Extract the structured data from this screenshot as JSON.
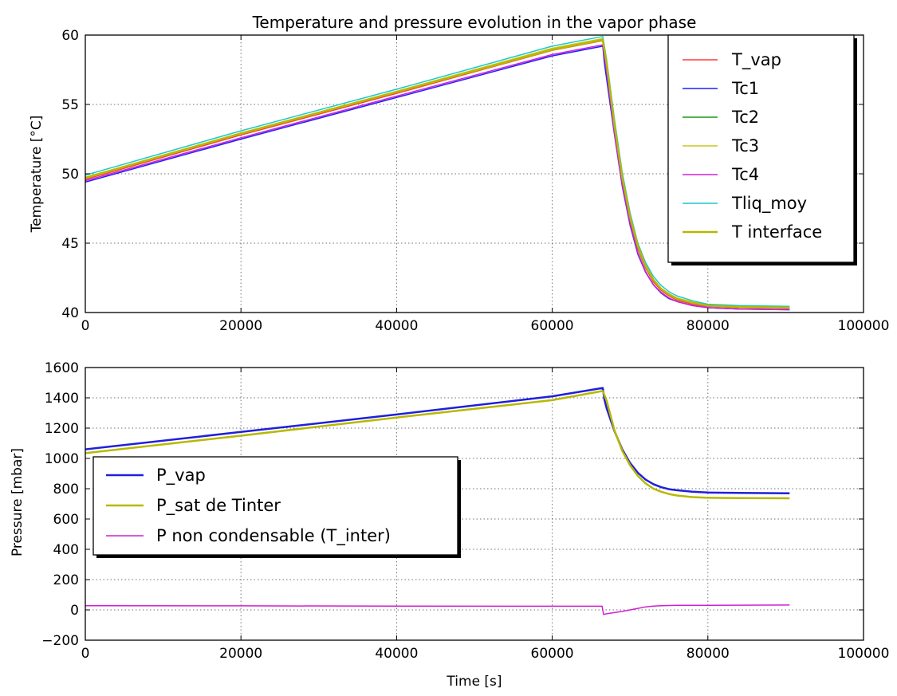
{
  "chart_data": [
    {
      "type": "line",
      "title": "Temperature and pressure evolution in the vapor phase",
      "xlabel": "",
      "ylabel": "Temperature [°C]",
      "xlim": [
        0,
        100000
      ],
      "ylim": [
        40,
        60
      ],
      "xticks": [
        0,
        20000,
        40000,
        60000,
        80000,
        100000
      ],
      "yticks": [
        40,
        45,
        50,
        55,
        60
      ],
      "xtick_labels": [
        "0",
        "20000",
        "40000",
        "60000",
        "80000",
        "100000"
      ],
      "ytick_labels": [
        "40",
        "45",
        "50",
        "55",
        "60"
      ],
      "grid": true,
      "legend_position": "top-right",
      "series": [
        {
          "name": "T_vap",
          "color": "#ff3b3b",
          "width": 1.5,
          "x": [
            0,
            20000,
            40000,
            60000,
            66500,
            67000,
            68000,
            69000,
            70000,
            71000,
            72000,
            73000,
            74000,
            75000,
            76000,
            78000,
            80000,
            84000,
            90500
          ],
          "y": [
            49.6,
            52.8,
            55.8,
            58.9,
            59.6,
            57.6,
            53.2,
            49.5,
            46.7,
            44.6,
            43.2,
            42.2,
            41.6,
            41.2,
            40.9,
            40.6,
            40.45,
            40.35,
            40.3
          ]
        },
        {
          "name": "Tc1",
          "color": "#1f1fff",
          "width": 1.5,
          "x": [
            0,
            20000,
            40000,
            60000,
            66500,
            66700,
            67000,
            68000,
            69000,
            70000,
            71000,
            72000,
            73000,
            74000,
            75000,
            76000,
            78000,
            80000,
            84000,
            90500
          ],
          "y": [
            49.4,
            52.5,
            55.5,
            58.5,
            59.2,
            58.0,
            56.8,
            52.8,
            49.1,
            46.3,
            44.2,
            42.9,
            42.0,
            41.4,
            41.0,
            40.8,
            40.5,
            40.35,
            40.25,
            40.2
          ]
        },
        {
          "name": "Tc2",
          "color": "#1a9a1a",
          "width": 1.5,
          "x": [
            0,
            20000,
            40000,
            60000,
            66500,
            67000,
            68000,
            69000,
            70000,
            71000,
            72000,
            73000,
            74000,
            75000,
            76000,
            78000,
            80000,
            84000,
            90500
          ],
          "y": [
            49.7,
            52.9,
            55.9,
            59.0,
            59.7,
            57.7,
            53.3,
            49.6,
            46.8,
            44.7,
            43.3,
            42.3,
            41.7,
            41.3,
            41.0,
            40.7,
            40.5,
            40.4,
            40.35
          ]
        },
        {
          "name": "Tc3",
          "color": "#c8c81e",
          "width": 1.5,
          "x": [
            0,
            20000,
            40000,
            60000,
            66500,
            67000,
            68000,
            69000,
            70000,
            71000,
            72000,
            73000,
            74000,
            75000,
            76000,
            78000,
            80000,
            84000,
            90500
          ],
          "y": [
            49.75,
            52.95,
            55.95,
            59.05,
            59.75,
            57.8,
            53.4,
            49.7,
            46.9,
            44.8,
            43.4,
            42.4,
            41.75,
            41.35,
            41.05,
            40.75,
            40.55,
            40.45,
            40.4
          ]
        },
        {
          "name": "Tc4",
          "color": "#d020d0",
          "width": 1.5,
          "x": [
            0,
            20000,
            40000,
            60000,
            66500,
            67000,
            68000,
            69000,
            70000,
            71000,
            72000,
            73000,
            74000,
            75000,
            76000,
            78000,
            80000,
            84000,
            90500
          ],
          "y": [
            49.5,
            52.6,
            55.6,
            58.6,
            59.3,
            57.3,
            52.9,
            49.2,
            46.4,
            44.3,
            42.95,
            42.0,
            41.45,
            41.05,
            40.8,
            40.5,
            40.35,
            40.25,
            40.2
          ]
        },
        {
          "name": "Tliq_moy",
          "color": "#1ec8c8",
          "width": 1.5,
          "x": [
            0,
            20000,
            40000,
            60000,
            66500,
            67000,
            68000,
            69000,
            70000,
            71000,
            72000,
            73000,
            74000,
            75000,
            76000,
            78000,
            80000,
            84000,
            90500
          ],
          "y": [
            49.9,
            53.1,
            56.1,
            59.2,
            59.9,
            58.2,
            53.9,
            50.1,
            47.2,
            45.0,
            43.6,
            42.6,
            41.95,
            41.5,
            41.2,
            40.85,
            40.6,
            40.5,
            40.45
          ]
        },
        {
          "name": "T interface",
          "color": "#b8b800",
          "width": 2.5,
          "x": [
            0,
            20000,
            40000,
            60000,
            66500,
            67000,
            68000,
            69000,
            70000,
            71000,
            72000,
            73000,
            74000,
            75000,
            76000,
            78000,
            80000,
            84000,
            90500
          ],
          "y": [
            49.7,
            52.9,
            55.9,
            58.95,
            59.65,
            57.9,
            53.5,
            49.75,
            46.9,
            44.8,
            43.35,
            42.35,
            41.7,
            41.3,
            41.0,
            40.7,
            40.5,
            40.4,
            40.35
          ]
        }
      ]
    },
    {
      "type": "line",
      "title": "",
      "xlabel": "Time [s]",
      "ylabel": "Pressure [mbar]",
      "xlim": [
        0,
        100000
      ],
      "ylim": [
        -200,
        1600
      ],
      "xticks": [
        0,
        20000,
        40000,
        60000,
        80000,
        100000
      ],
      "yticks": [
        -200,
        0,
        200,
        400,
        600,
        800,
        1000,
        1200,
        1400,
        1600
      ],
      "xtick_labels": [
        "0",
        "20000",
        "40000",
        "60000",
        "80000",
        "100000"
      ],
      "ytick_labels": [
        "−200",
        "0",
        "200",
        "400",
        "600",
        "800",
        "1000",
        "1200",
        "1400",
        "1600"
      ],
      "grid": true,
      "legend_position": "center-left",
      "series": [
        {
          "name": "P_vap",
          "color": "#1f1fdd",
          "width": 2.5,
          "x": [
            0,
            20000,
            40000,
            60000,
            66500,
            66700,
            67000,
            68000,
            69000,
            70000,
            71000,
            72000,
            73000,
            74000,
            75000,
            76000,
            78000,
            80000,
            84000,
            90500
          ],
          "y": [
            1060,
            1175,
            1290,
            1410,
            1465,
            1390,
            1330,
            1180,
            1060,
            970,
            905,
            860,
            830,
            810,
            797,
            790,
            780,
            775,
            772,
            770
          ]
        },
        {
          "name": "P_sat de Tinter",
          "color": "#b8b800",
          "width": 2.5,
          "x": [
            0,
            20000,
            40000,
            60000,
            66500,
            67000,
            68000,
            69000,
            70000,
            71000,
            72000,
            73000,
            74000,
            75000,
            76000,
            78000,
            80000,
            84000,
            90500
          ],
          "y": [
            1035,
            1150,
            1270,
            1385,
            1445,
            1380,
            1185,
            1050,
            955,
            885,
            835,
            800,
            780,
            765,
            755,
            745,
            740,
            738,
            737
          ]
        },
        {
          "name": "P non condensable (T_inter)",
          "color": "#d020d0",
          "width": 1.5,
          "x": [
            0,
            20000,
            40000,
            60000,
            66400,
            66600,
            67000,
            68000,
            69000,
            70000,
            71000,
            72000,
            73000,
            74000,
            76000,
            80000,
            90500
          ],
          "y": [
            28,
            27,
            25,
            24,
            24,
            -30,
            -25,
            -18,
            -10,
            0,
            10,
            20,
            25,
            28,
            30,
            30,
            32
          ]
        }
      ]
    }
  ]
}
